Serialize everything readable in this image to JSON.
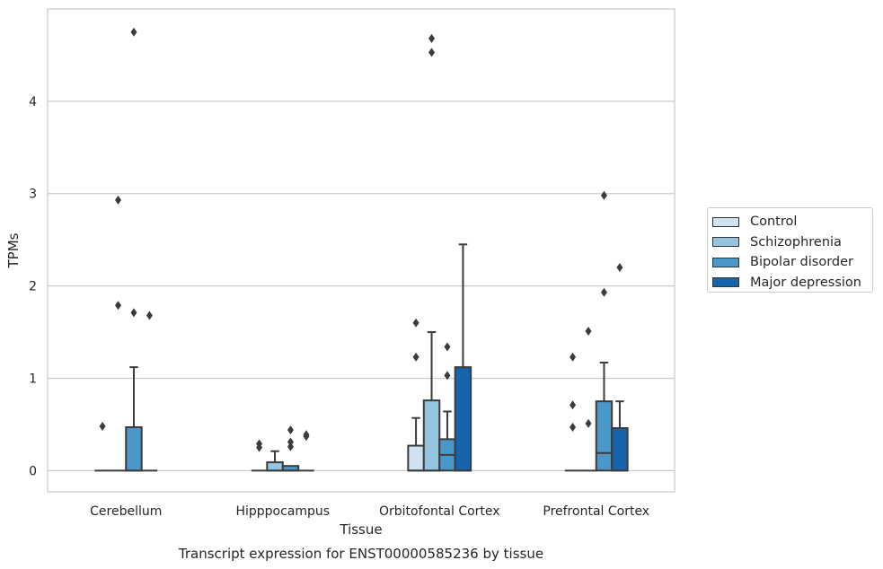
{
  "chart_data": {
    "type": "box",
    "title": "Transcript expression for ENST00000585236 by tissue",
    "xlabel": "Tissue",
    "ylabel": "TPMs",
    "ylim": [
      -0.23,
      5.0
    ],
    "yticks": [
      0,
      1,
      2,
      3,
      4
    ],
    "grid": true,
    "legend_position": "right",
    "categories": [
      "Cerebellum",
      "Hipppocampus",
      "Orbitofontal Cortex",
      "Prefrontal Cortex"
    ],
    "series": [
      {
        "name": "Control",
        "color": "#d0e1f2",
        "boxes": [
          {
            "q1": 0,
            "median": 0,
            "q3": 0,
            "whisker_low": 0,
            "whisker_high": 0,
            "outliers": [
              0.48
            ]
          },
          {
            "q1": 0,
            "median": 0,
            "q3": 0,
            "whisker_low": 0,
            "whisker_high": 0,
            "outliers": [
              0.25,
              0.29
            ]
          },
          {
            "q1": 0,
            "median": 0,
            "q3": 0.27,
            "whisker_low": 0,
            "whisker_high": 0.57,
            "outliers": [
              1.23,
              1.6
            ]
          },
          {
            "q1": 0,
            "median": 0,
            "q3": 0,
            "whisker_low": 0,
            "whisker_high": 0,
            "outliers": [
              0.47,
              0.71,
              1.23
            ]
          }
        ]
      },
      {
        "name": "Schizophrenia",
        "color": "#94c4df",
        "boxes": [
          {
            "q1": 0,
            "median": 0,
            "q3": 0,
            "whisker_low": 0,
            "whisker_high": 0,
            "outliers": [
              1.79,
              2.93
            ]
          },
          {
            "q1": 0,
            "median": 0,
            "q3": 0.09,
            "whisker_low": 0,
            "whisker_high": 0.21,
            "outliers": []
          },
          {
            "q1": 0,
            "median": 0,
            "q3": 0.76,
            "whisker_low": 0,
            "whisker_high": 1.5,
            "outliers": [
              4.53,
              4.68
            ]
          },
          {
            "q1": 0,
            "median": 0,
            "q3": 0,
            "whisker_low": 0,
            "whisker_high": 0,
            "outliers": [
              0.51,
              1.51
            ]
          }
        ]
      },
      {
        "name": "Bipolar disorder",
        "color": "#4a98c9",
        "boxes": [
          {
            "q1": 0,
            "median": 0,
            "q3": 0.47,
            "whisker_low": 0,
            "whisker_high": 1.12,
            "outliers": [
              1.71,
              4.75
            ]
          },
          {
            "q1": 0,
            "median": 0,
            "q3": 0.05,
            "whisker_low": 0,
            "whisker_high": 0.05,
            "outliers": [
              0.26,
              0.31,
              0.44
            ]
          },
          {
            "q1": 0,
            "median": 0.17,
            "q3": 0.34,
            "whisker_low": 0,
            "whisker_high": 0.64,
            "outliers": [
              1.03,
              1.34
            ]
          },
          {
            "q1": 0,
            "median": 0.19,
            "q3": 0.75,
            "whisker_low": 0,
            "whisker_high": 1.17,
            "outliers": [
              1.93,
              2.98
            ]
          }
        ]
      },
      {
        "name": "Major depression",
        "color": "#1764ab",
        "boxes": [
          {
            "q1": 0,
            "median": 0,
            "q3": 0,
            "whisker_low": 0,
            "whisker_high": 0,
            "outliers": [
              1.68
            ]
          },
          {
            "q1": 0,
            "median": 0,
            "q3": 0,
            "whisker_low": 0,
            "whisker_high": 0,
            "outliers": [
              0.37,
              0.39
            ]
          },
          {
            "q1": 0,
            "median": 0,
            "q3": 1.12,
            "whisker_low": 0,
            "whisker_high": 2.45,
            "outliers": []
          },
          {
            "q1": 0,
            "median": 0,
            "q3": 0.46,
            "whisker_low": 0,
            "whisker_high": 0.75,
            "outliers": [
              2.2
            ]
          }
        ]
      }
    ]
  }
}
